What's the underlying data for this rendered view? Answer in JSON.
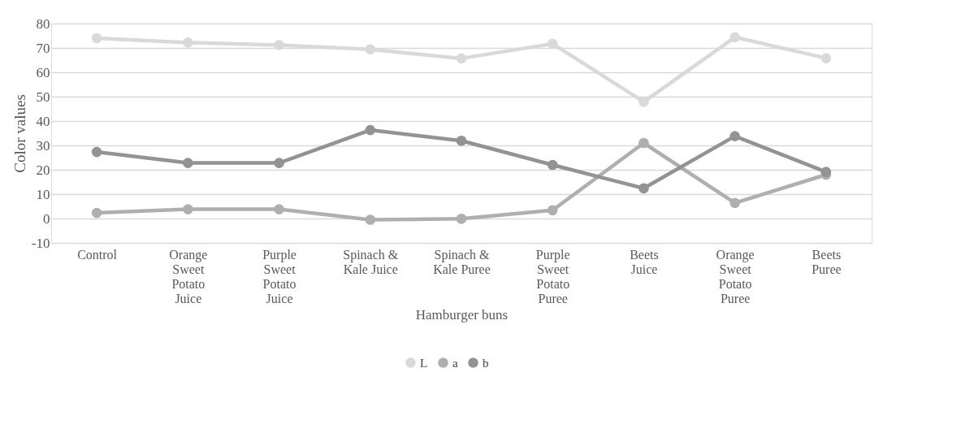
{
  "chart_data": {
    "type": "line",
    "xlabel": "Hamburger buns",
    "ylabel": "Color values",
    "categories": [
      "Control",
      "Orange Sweet Potato Juice",
      "Purple Sweet Potato Juice",
      "Spinach & Kale Juice",
      "Spinach & Kale Puree",
      "Purple Sweet Potato Puree",
      "Beets Juice",
      "Orange Sweet Potato Puree",
      "Beets Puree"
    ],
    "series": [
      {
        "name": "L",
        "color": "#d9d9d9",
        "values": [
          74,
          72.2,
          71.2,
          69.4,
          65.7,
          71.7,
          47.9,
          74.4,
          65.8
        ]
      },
      {
        "name": "a",
        "color": "#afafaf",
        "values": [
          2.3,
          3.8,
          3.8,
          -0.5,
          -0.1,
          3.4,
          31.0,
          6.4,
          18.0
        ]
      },
      {
        "name": "b",
        "color": "#939393",
        "values": [
          27.3,
          22.8,
          22.8,
          36.3,
          31.9,
          22.0,
          12.4,
          33.8,
          19.1
        ]
      }
    ],
    "ylim": [
      -10,
      80
    ],
    "yticks": [
      -10,
      0,
      10,
      20,
      30,
      40,
      50,
      60,
      70,
      80
    ],
    "grid": "y",
    "legend": "bottom",
    "marker": "circle",
    "line_style": "solid"
  }
}
